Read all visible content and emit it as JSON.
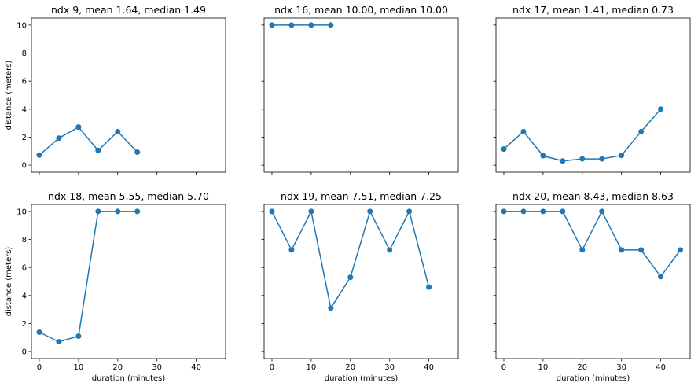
{
  "chart_data": [
    {
      "type": "line",
      "title": "ndx 9,  mean 1.64, median 1.49",
      "xlabel": "",
      "ylabel": "distance (meters)",
      "x": [
        0,
        5,
        10,
        15,
        20,
        25
      ],
      "series": [
        {
          "values": [
            0.72,
            1.93,
            2.72,
            1.05,
            2.4,
            0.93
          ]
        }
      ],
      "xlim": [
        -2,
        47.5
      ],
      "ylim": [
        -0.5,
        10.5
      ],
      "xticks": [],
      "yticks": [
        0,
        2,
        4,
        6,
        8,
        10
      ],
      "color": "#1f77b4",
      "grid": false
    },
    {
      "type": "line",
      "title": "ndx 16,  mean 10.00, median 10.00",
      "xlabel": "",
      "ylabel": "",
      "x": [
        0,
        5,
        10,
        15
      ],
      "series": [
        {
          "values": [
            10,
            10,
            10,
            10
          ]
        }
      ],
      "xlim": [
        -2,
        47.5
      ],
      "ylim": [
        -0.5,
        10.5
      ],
      "xticks": [],
      "yticks": [],
      "color": "#1f77b4",
      "grid": false
    },
    {
      "type": "line",
      "title": "ndx 17,  mean 1.41, median 0.73",
      "xlabel": "",
      "ylabel": "",
      "x": [
        0,
        5,
        10,
        15,
        20,
        25,
        30,
        35,
        40
      ],
      "series": [
        {
          "values": [
            1.15,
            2.4,
            0.67,
            0.3,
            0.45,
            0.45,
            0.7,
            2.4,
            4.0
          ]
        }
      ],
      "xlim": [
        -2,
        47.5
      ],
      "ylim": [
        -0.5,
        10.5
      ],
      "xticks": [],
      "yticks": [],
      "color": "#1f77b4",
      "grid": false
    },
    {
      "type": "line",
      "title": "ndx 18,  mean 5.55, median 5.70",
      "xlabel": "duration (minutes)",
      "ylabel": "distance (meters)",
      "x": [
        0,
        5,
        10,
        15,
        20,
        25
      ],
      "series": [
        {
          "values": [
            1.38,
            0.7,
            1.1,
            10,
            10,
            10
          ]
        }
      ],
      "xlim": [
        -2,
        47.5
      ],
      "ylim": [
        -0.5,
        10.5
      ],
      "xticks": [
        0,
        10,
        20,
        30,
        40
      ],
      "yticks": [
        0,
        2,
        4,
        6,
        8,
        10
      ],
      "color": "#1f77b4",
      "grid": false
    },
    {
      "type": "line",
      "title": "ndx 19,  mean 7.51, median 7.25",
      "xlabel": "duration (minutes)",
      "ylabel": "",
      "x": [
        0,
        5,
        10,
        15,
        20,
        25,
        30,
        35,
        40
      ],
      "series": [
        {
          "values": [
            10,
            7.25,
            10,
            3.1,
            5.3,
            10,
            7.25,
            10,
            4.6
          ]
        }
      ],
      "xlim": [
        -2,
        47.5
      ],
      "ylim": [
        -0.5,
        10.5
      ],
      "xticks": [
        0,
        10,
        20,
        30,
        40
      ],
      "yticks": [],
      "color": "#1f77b4",
      "grid": false
    },
    {
      "type": "line",
      "title": "ndx 20,  mean 8.43, median 8.63",
      "xlabel": "duration (minutes)",
      "ylabel": "",
      "x": [
        0,
        5,
        10,
        15,
        20,
        25,
        30,
        35,
        40,
        45
      ],
      "series": [
        {
          "values": [
            10,
            10,
            10,
            10,
            7.25,
            10,
            7.25,
            7.25,
            5.35,
            7.25
          ]
        }
      ],
      "xlim": [
        -2,
        47.5
      ],
      "ylim": [
        -0.5,
        10.5
      ],
      "xticks": [
        0,
        10,
        20,
        30,
        40
      ],
      "yticks": [],
      "color": "#1f77b4",
      "grid": false
    }
  ]
}
